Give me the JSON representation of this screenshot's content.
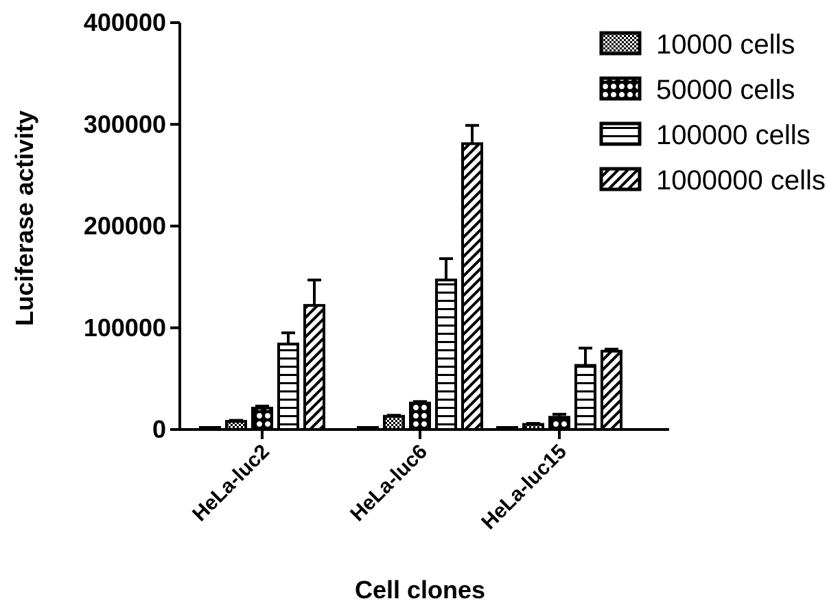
{
  "chart_data": {
    "type": "bar",
    "title": "",
    "xlabel": "Cell clones",
    "ylabel": "Luciferase activity",
    "ylim": [
      0,
      400000
    ],
    "yticks": [
      0,
      100000,
      200000,
      300000,
      400000
    ],
    "ytick_labels": [
      "0",
      "100000",
      "200000",
      "300000",
      "400000"
    ],
    "categories": [
      "HeLa-luc2",
      "HeLa-luc6",
      "HeLa-luc15"
    ],
    "legend_position": "top-right",
    "grid": false,
    "error_bars": true,
    "series": [
      {
        "name": "",
        "pattern": "solid-white",
        "values": [
          1000,
          1500,
          800
        ],
        "errors": [
          200,
          300,
          200
        ]
      },
      {
        "name": "10000 cells",
        "pattern": "checker",
        "values": [
          8000,
          13000,
          5000
        ],
        "errors": [
          1000,
          1000,
          1000
        ]
      },
      {
        "name": "50000 cells",
        "pattern": "lattice",
        "values": [
          21000,
          26000,
          12000
        ],
        "errors": [
          2000,
          1500,
          3000
        ]
      },
      {
        "name": "100000 cells",
        "pattern": "horizontal-lines",
        "values": [
          84000,
          147000,
          63000
        ],
        "errors": [
          11000,
          21000,
          17000
        ]
      },
      {
        "name": "1000000 cells",
        "pattern": "diagonal-hatch",
        "values": [
          122000,
          281000,
          77000
        ],
        "errors": [
          25000,
          18000,
          2000
        ]
      }
    ],
    "legend": [
      {
        "label": "10000 cells",
        "pattern": "checker"
      },
      {
        "label": "50000 cells",
        "pattern": "lattice"
      },
      {
        "label": "100000 cells",
        "pattern": "horizontal-lines"
      },
      {
        "label": "1000000 cells",
        "pattern": "diagonal-hatch"
      }
    ]
  }
}
